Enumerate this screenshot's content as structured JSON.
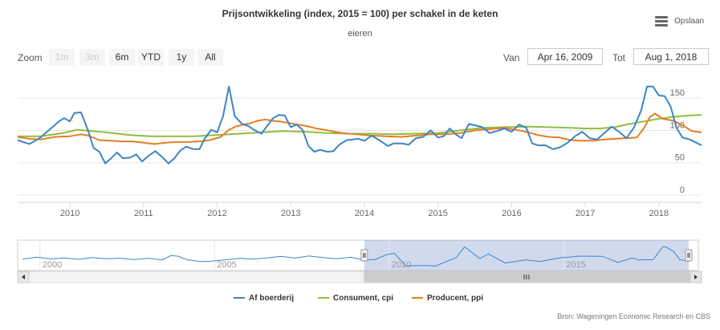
{
  "header": {
    "title": "Prijsontwikkeling (index, 2015 = 100) per schakel in de keten",
    "subtitle": "eieren",
    "menu_label": "Opslaan"
  },
  "range_selector": {
    "zoom_label": "Zoom",
    "buttons": [
      {
        "label": "1m",
        "state": "disabled"
      },
      {
        "label": "3m",
        "state": "disabled"
      },
      {
        "label": "6m",
        "state": "normal"
      },
      {
        "label": "YTD",
        "state": "normal"
      },
      {
        "label": "1y",
        "state": "normal"
      },
      {
        "label": "All",
        "state": "normal"
      }
    ],
    "from_label": "Van",
    "from_value": "Apr 16, 2009",
    "to_label": "Tot",
    "to_value": "Aug 1, 2018"
  },
  "credits": "Bron: Wageningen Economic Research en CBS",
  "chart_data": {
    "type": "line",
    "title": "Prijsontwikkeling (index, 2015 = 100) per schakel in de keten",
    "subtitle": "eieren",
    "x_range": [
      2009.29,
      2018.58
    ],
    "ylim": [
      0,
      180
    ],
    "y_ticks": [
      0,
      50,
      100,
      150
    ],
    "x_ticks": [
      "2010",
      "2011",
      "2012",
      "2013",
      "2014",
      "2015",
      "2016",
      "2017",
      "2018"
    ],
    "legend_position": "bottom-center",
    "grid": "horizontal",
    "series": [
      {
        "name": "Af boerderij",
        "color": "#3d85c6",
        "points": [
          [
            2009.29,
            85
          ],
          [
            2009.45,
            79
          ],
          [
            2009.6,
            89
          ],
          [
            2009.75,
            104
          ],
          [
            2009.85,
            114
          ],
          [
            2009.92,
            119
          ],
          [
            2010.0,
            114
          ],
          [
            2010.06,
            127
          ],
          [
            2010.15,
            128
          ],
          [
            2010.25,
            99
          ],
          [
            2010.32,
            73
          ],
          [
            2010.4,
            67
          ],
          [
            2010.48,
            49
          ],
          [
            2010.56,
            57
          ],
          [
            2010.64,
            66
          ],
          [
            2010.72,
            57
          ],
          [
            2010.82,
            58
          ],
          [
            2010.9,
            63
          ],
          [
            2010.98,
            52
          ],
          [
            2011.06,
            60
          ],
          [
            2011.16,
            68
          ],
          [
            2011.26,
            58
          ],
          [
            2011.34,
            49
          ],
          [
            2011.42,
            57
          ],
          [
            2011.5,
            69
          ],
          [
            2011.58,
            75
          ],
          [
            2011.68,
            71
          ],
          [
            2011.76,
            71
          ],
          [
            2011.83,
            87
          ],
          [
            2011.92,
            101
          ],
          [
            2012.0,
            97
          ],
          [
            2012.08,
            122
          ],
          [
            2012.16,
            168
          ],
          [
            2012.24,
            122
          ],
          [
            2012.34,
            110
          ],
          [
            2012.42,
            107
          ],
          [
            2012.5,
            101
          ],
          [
            2012.6,
            95
          ],
          [
            2012.68,
            107
          ],
          [
            2012.76,
            119
          ],
          [
            2012.84,
            124
          ],
          [
            2012.92,
            123
          ],
          [
            2013.0,
            105
          ],
          [
            2013.08,
            109
          ],
          [
            2013.16,
            101
          ],
          [
            2013.24,
            76
          ],
          [
            2013.32,
            67
          ],
          [
            2013.4,
            70
          ],
          [
            2013.5,
            67
          ],
          [
            2013.58,
            68
          ],
          [
            2013.66,
            78
          ],
          [
            2013.76,
            85
          ],
          [
            2013.84,
            86
          ],
          [
            2013.92,
            87
          ],
          [
            2014.0,
            84
          ],
          [
            2014.1,
            92
          ],
          [
            2014.2,
            85
          ],
          [
            2014.32,
            76
          ],
          [
            2014.4,
            80
          ],
          [
            2014.5,
            80
          ],
          [
            2014.6,
            78
          ],
          [
            2014.7,
            88
          ],
          [
            2014.8,
            90
          ],
          [
            2014.9,
            100
          ],
          [
            2015.0,
            89
          ],
          [
            2015.08,
            91
          ],
          [
            2015.16,
            103
          ],
          [
            2015.24,
            94
          ],
          [
            2015.32,
            88
          ],
          [
            2015.42,
            110
          ],
          [
            2015.5,
            108
          ],
          [
            2015.6,
            105
          ],
          [
            2015.7,
            96
          ],
          [
            2015.8,
            99
          ],
          [
            2015.9,
            103
          ],
          [
            2016.0,
            98
          ],
          [
            2016.1,
            109
          ],
          [
            2016.2,
            104
          ],
          [
            2016.28,
            80
          ],
          [
            2016.36,
            77
          ],
          [
            2016.46,
            77
          ],
          [
            2016.56,
            71
          ],
          [
            2016.66,
            74
          ],
          [
            2016.76,
            81
          ],
          [
            2016.86,
            91
          ],
          [
            2016.96,
            98
          ],
          [
            2017.06,
            88
          ],
          [
            2017.16,
            86
          ],
          [
            2017.26,
            96
          ],
          [
            2017.36,
            106
          ],
          [
            2017.46,
            98
          ],
          [
            2017.56,
            88
          ],
          [
            2017.66,
            104
          ],
          [
            2017.76,
            131
          ],
          [
            2017.84,
            168
          ],
          [
            2017.92,
            168
          ],
          [
            2018.0,
            154
          ],
          [
            2018.08,
            153
          ],
          [
            2018.16,
            137
          ],
          [
            2018.24,
            104
          ],
          [
            2018.32,
            89
          ],
          [
            2018.42,
            86
          ],
          [
            2018.58,
            77
          ]
        ]
      },
      {
        "name": "Consument, cpi",
        "color": "#8fbf3f",
        "points": [
          [
            2009.29,
            91
          ],
          [
            2009.6,
            91
          ],
          [
            2009.9,
            96
          ],
          [
            2010.1,
            101
          ],
          [
            2010.3,
            99
          ],
          [
            2010.5,
            97
          ],
          [
            2010.8,
            93
          ],
          [
            2011.1,
            91
          ],
          [
            2011.4,
            91
          ],
          [
            2011.7,
            91
          ],
          [
            2012.0,
            93
          ],
          [
            2012.3,
            95
          ],
          [
            2012.6,
            97
          ],
          [
            2012.9,
            99
          ],
          [
            2013.2,
            98
          ],
          [
            2013.5,
            96
          ],
          [
            2013.8,
            95
          ],
          [
            2014.1,
            95
          ],
          [
            2014.4,
            94
          ],
          [
            2014.7,
            95
          ],
          [
            2015.0,
            96
          ],
          [
            2015.3,
            100
          ],
          [
            2015.6,
            104
          ],
          [
            2015.9,
            105
          ],
          [
            2016.2,
            106
          ],
          [
            2016.5,
            105
          ],
          [
            2016.8,
            104
          ],
          [
            2017.0,
            103
          ],
          [
            2017.2,
            103
          ],
          [
            2017.4,
            105
          ],
          [
            2017.6,
            110
          ],
          [
            2017.8,
            114
          ],
          [
            2018.0,
            118
          ],
          [
            2018.2,
            121
          ],
          [
            2018.4,
            123
          ],
          [
            2018.58,
            124
          ]
        ]
      },
      {
        "name": "Producent, ppi",
        "color": "#e67e22",
        "points": [
          [
            2009.29,
            90
          ],
          [
            2009.45,
            87
          ],
          [
            2009.6,
            86
          ],
          [
            2009.8,
            90
          ],
          [
            2010.0,
            91
          ],
          [
            2010.15,
            94
          ],
          [
            2010.25,
            92
          ],
          [
            2010.4,
            85
          ],
          [
            2010.55,
            84
          ],
          [
            2010.7,
            83
          ],
          [
            2010.85,
            83
          ],
          [
            2011.0,
            81
          ],
          [
            2011.15,
            79
          ],
          [
            2011.3,
            81
          ],
          [
            2011.45,
            82
          ],
          [
            2011.6,
            82
          ],
          [
            2011.75,
            83
          ],
          [
            2011.9,
            85
          ],
          [
            2012.05,
            90
          ],
          [
            2012.15,
            100
          ],
          [
            2012.25,
            106
          ],
          [
            2012.35,
            109
          ],
          [
            2012.45,
            111
          ],
          [
            2012.55,
            115
          ],
          [
            2012.65,
            117
          ],
          [
            2012.75,
            115
          ],
          [
            2012.85,
            114
          ],
          [
            2012.95,
            112
          ],
          [
            2013.05,
            110
          ],
          [
            2013.2,
            107
          ],
          [
            2013.35,
            103
          ],
          [
            2013.5,
            100
          ],
          [
            2013.7,
            96
          ],
          [
            2013.9,
            94
          ],
          [
            2014.1,
            92
          ],
          [
            2014.3,
            91
          ],
          [
            2014.5,
            90
          ],
          [
            2014.7,
            92
          ],
          [
            2014.9,
            94
          ],
          [
            2015.1,
            94
          ],
          [
            2015.3,
            96
          ],
          [
            2015.5,
            100
          ],
          [
            2015.7,
            102
          ],
          [
            2015.9,
            104
          ],
          [
            2016.05,
            101
          ],
          [
            2016.2,
            98
          ],
          [
            2016.35,
            93
          ],
          [
            2016.5,
            90
          ],
          [
            2016.65,
            89
          ],
          [
            2016.8,
            85
          ],
          [
            2016.95,
            84
          ],
          [
            2017.1,
            84
          ],
          [
            2017.25,
            86
          ],
          [
            2017.4,
            87
          ],
          [
            2017.55,
            88
          ],
          [
            2017.7,
            89
          ],
          [
            2017.8,
            104
          ],
          [
            2017.88,
            121
          ],
          [
            2017.95,
            126
          ],
          [
            2018.05,
            118
          ],
          [
            2018.2,
            115
          ],
          [
            2018.32,
            108
          ],
          [
            2018.45,
            99
          ],
          [
            2018.58,
            97
          ]
        ]
      }
    ],
    "navigator": {
      "x_ticks": [
        "2000",
        "2005",
        "2010",
        "2015"
      ],
      "full_range": [
        1999.5,
        2018.58
      ],
      "selected_range": [
        2009.29,
        2018.58
      ],
      "points": [
        [
          1999.5,
          91
        ],
        [
          1999.9,
          103
        ],
        [
          2000.3,
          93
        ],
        [
          2000.7,
          99
        ],
        [
          2001.1,
          90
        ],
        [
          2001.5,
          101
        ],
        [
          2001.9,
          94
        ],
        [
          2002.3,
          97
        ],
        [
          2002.7,
          88
        ],
        [
          2003.1,
          96
        ],
        [
          2003.5,
          87
        ],
        [
          2003.75,
          113
        ],
        [
          2003.95,
          110
        ],
        [
          2004.2,
          88
        ],
        [
          2004.6,
          76
        ],
        [
          2004.9,
          79
        ],
        [
          2005.3,
          87
        ],
        [
          2005.7,
          96
        ],
        [
          2006.1,
          92
        ],
        [
          2006.5,
          99
        ],
        [
          2006.9,
          109
        ],
        [
          2007.3,
          98
        ],
        [
          2007.7,
          111
        ],
        [
          2008.1,
          101
        ],
        [
          2008.5,
          94
        ],
        [
          2008.9,
          103
        ],
        [
          2009.29,
          85
        ],
        [
          2009.6,
          89
        ],
        [
          2009.92,
          119
        ],
        [
          2010.15,
          128
        ],
        [
          2010.48,
          49
        ],
        [
          2010.98,
          52
        ],
        [
          2011.34,
          49
        ],
        [
          2011.92,
          101
        ],
        [
          2012.16,
          168
        ],
        [
          2012.6,
          95
        ],
        [
          2012.84,
          124
        ],
        [
          2013.32,
          67
        ],
        [
          2013.92,
          87
        ],
        [
          2014.32,
          76
        ],
        [
          2014.9,
          100
        ],
        [
          2015.16,
          103
        ],
        [
          2015.42,
          110
        ],
        [
          2016.1,
          109
        ],
        [
          2016.56,
          71
        ],
        [
          2016.96,
          98
        ],
        [
          2017.16,
          86
        ],
        [
          2017.56,
          88
        ],
        [
          2017.84,
          168
        ],
        [
          2017.92,
          168
        ],
        [
          2018.16,
          137
        ],
        [
          2018.32,
          89
        ],
        [
          2018.58,
          77
        ]
      ]
    }
  }
}
